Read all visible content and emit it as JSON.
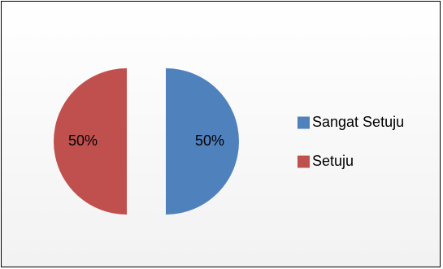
{
  "chart_data": {
    "type": "pie",
    "exploded": true,
    "slices": [
      {
        "name": "Sangat Setuju",
        "value": 50,
        "label": "50%",
        "color": "#4f81bd"
      },
      {
        "name": "Setuju",
        "value": 50,
        "label": "50%",
        "color": "#c0504d"
      }
    ],
    "legend": {
      "position": "right",
      "entries": [
        "Sangat Setuju",
        "Setuju"
      ]
    }
  }
}
